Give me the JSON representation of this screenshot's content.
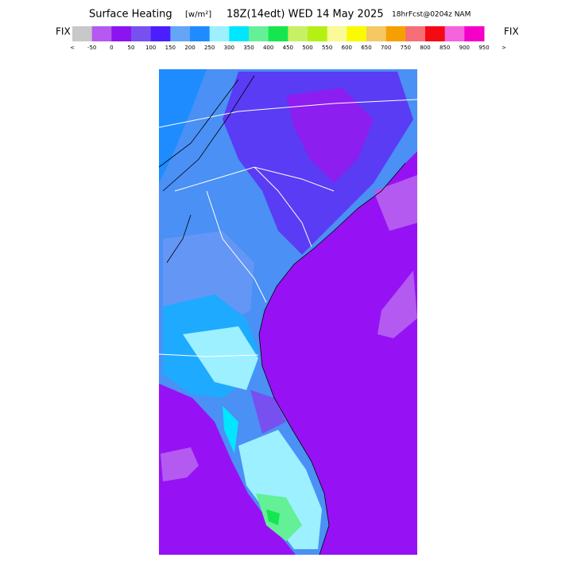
{
  "header": {
    "title": "Surface Heating",
    "units": "[w/m²]",
    "valid": "18Z(14edt) WED 14 May 2025",
    "forecast": "18hrFcst@0204z NAM"
  },
  "legend": {
    "fix_left": "FIX",
    "fix_right": "FIX",
    "below": "<",
    "above": ">",
    "colors": [
      "#c8c8c8",
      "#b45af0",
      "#8c14f0",
      "#7850f0",
      "#4b1eff",
      "#64a5f5",
      "#1e8cff",
      "#9cf0ff",
      "#00e6ff",
      "#64f096",
      "#14e650",
      "#c8f064",
      "#b4f014",
      "#fafa96",
      "#fafa00",
      "#f5c864",
      "#f5a000",
      "#f56e78",
      "#f50a14",
      "#f564dc",
      "#f500c8"
    ],
    "ticks": [
      -50,
      0,
      50,
      100,
      150,
      200,
      250,
      300,
      350,
      400,
      450,
      500,
      550,
      600,
      650,
      700,
      750,
      800,
      850,
      900,
      950
    ]
  }
}
